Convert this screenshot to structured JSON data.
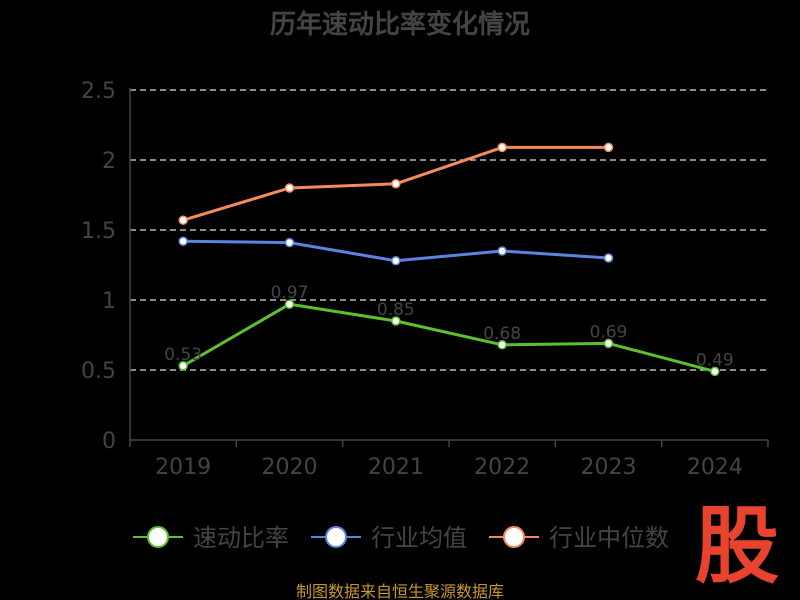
{
  "colors": {
    "background": "#000000",
    "title": "#444444",
    "axis": "#444444",
    "tick_text": "#444444",
    "grid": "#dddddd",
    "source_text": "#c8962e",
    "logo": "#e8432e"
  },
  "source_text": "制图数据来自恒生聚源数据库",
  "logo_text": "股",
  "chart_data": {
    "type": "line",
    "title": "历年速动比率变化情况",
    "xlabel": "",
    "ylabel": "",
    "categories": [
      "2019",
      "2020",
      "2021",
      "2022",
      "2023",
      "2024"
    ],
    "ylim": [
      0,
      2.5
    ],
    "yticks": [
      "0",
      "0.5",
      "1",
      "1.5",
      "2",
      "2.5"
    ],
    "grid": true,
    "legend_position": "bottom",
    "series": [
      {
        "name": "速动比率",
        "color": "#5bc22d",
        "values": [
          0.53,
          0.97,
          0.85,
          0.68,
          0.69,
          0.49
        ],
        "labels": [
          "0.53",
          "0.97",
          "0.85",
          "0.68",
          "0.69",
          "0.49"
        ]
      },
      {
        "name": "行业均值",
        "color": "#5b84e0",
        "values": [
          1.42,
          1.41,
          1.28,
          1.35,
          1.3,
          null
        ],
        "labels": []
      },
      {
        "name": "行业中位数",
        "color": "#f58a5b",
        "values": [
          1.57,
          1.8,
          1.83,
          2.09,
          2.09,
          null
        ],
        "labels": []
      }
    ]
  }
}
